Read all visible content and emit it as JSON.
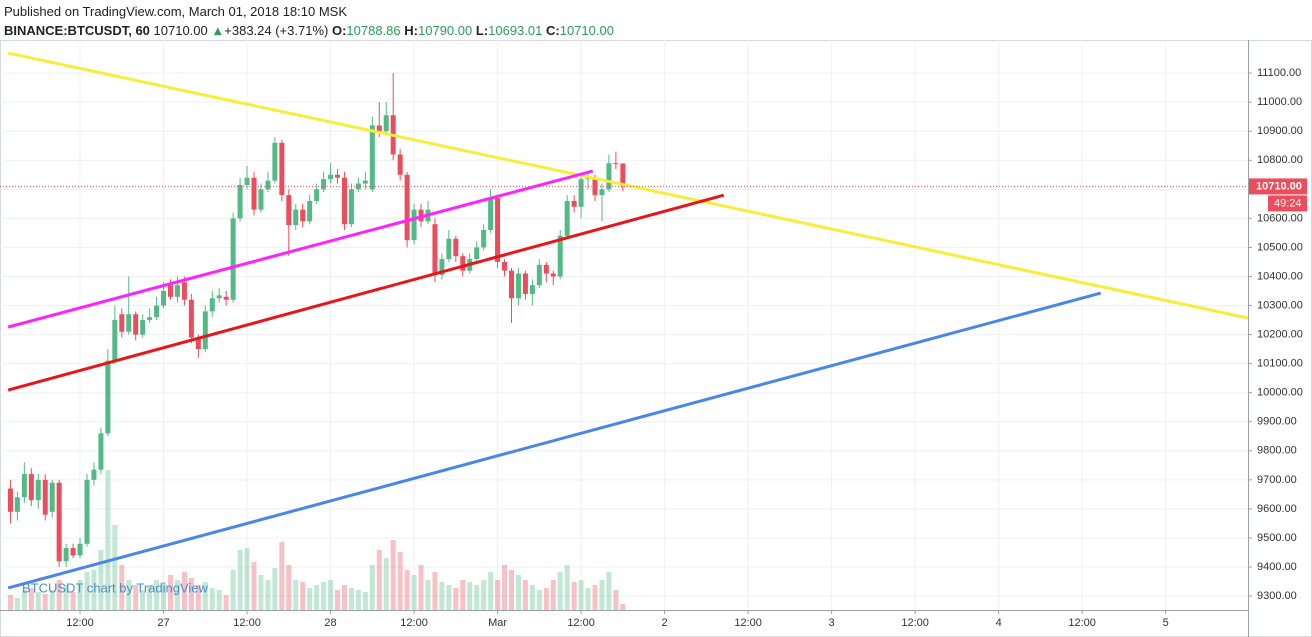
{
  "chart_data": {
    "type": "candlestick",
    "header": {
      "published": "Published on TradingView.com, March 01, 2018 18:10 MSK",
      "symbol": "BINANCE:BTCUSDT, 60",
      "last": "10710.00",
      "arrow": "▲",
      "change": "+383.24 (+3.71%)",
      "o_label": "O:",
      "o": "10788.86",
      "h_label": "H:",
      "h": "10790.00",
      "l_label": "L:",
      "l": "10693.01",
      "c_label": "C:",
      "c": "10710.00"
    },
    "watermark": "BTCUSDT chart by TradingView",
    "up_color": "#53b987",
    "down_color": "#eb4d5c",
    "x": [
      "2018-02-26 02:00",
      "2018-02-26 03:00",
      "2018-02-26 04:00",
      "2018-02-26 05:00",
      "2018-02-26 06:00",
      "2018-02-26 07:00",
      "2018-02-26 08:00",
      "2018-02-26 09:00",
      "2018-02-26 10:00",
      "2018-02-26 11:00",
      "2018-02-26 12:00",
      "2018-02-26 13:00",
      "2018-02-26 14:00",
      "2018-02-26 15:00",
      "2018-02-26 16:00",
      "2018-02-26 17:00",
      "2018-02-26 18:00",
      "2018-02-26 19:00",
      "2018-02-26 20:00",
      "2018-02-26 21:00",
      "2018-02-26 22:00",
      "2018-02-26 23:00",
      "2018-02-27 00:00",
      "2018-02-27 01:00",
      "2018-02-27 02:00",
      "2018-02-27 03:00",
      "2018-02-27 04:00",
      "2018-02-27 05:00",
      "2018-02-27 06:00",
      "2018-02-27 07:00",
      "2018-02-27 08:00",
      "2018-02-27 09:00",
      "2018-02-27 10:00",
      "2018-02-27 11:00",
      "2018-02-27 12:00",
      "2018-02-27 13:00",
      "2018-02-27 14:00",
      "2018-02-27 15:00",
      "2018-02-27 16:00",
      "2018-02-27 17:00",
      "2018-02-27 18:00",
      "2018-02-27 19:00",
      "2018-02-27 20:00",
      "2018-02-27 21:00",
      "2018-02-27 22:00",
      "2018-02-27 23:00",
      "2018-02-28 00:00",
      "2018-02-28 01:00",
      "2018-02-28 02:00",
      "2018-02-28 03:00",
      "2018-02-28 04:00",
      "2018-02-28 05:00",
      "2018-02-28 06:00",
      "2018-02-28 07:00",
      "2018-02-28 08:00",
      "2018-02-28 09:00",
      "2018-02-28 10:00",
      "2018-02-28 11:00",
      "2018-02-28 12:00",
      "2018-02-28 13:00",
      "2018-02-28 14:00",
      "2018-02-28 15:00",
      "2018-02-28 16:00",
      "2018-02-28 17:00",
      "2018-02-28 18:00",
      "2018-02-28 19:00",
      "2018-02-28 20:00",
      "2018-02-28 21:00",
      "2018-02-28 22:00",
      "2018-02-28 23:00",
      "2018-03-01 00:00",
      "2018-03-01 01:00",
      "2018-03-01 02:00",
      "2018-03-01 03:00",
      "2018-03-01 04:00",
      "2018-03-01 05:00",
      "2018-03-01 06:00",
      "2018-03-01 07:00",
      "2018-03-01 08:00",
      "2018-03-01 09:00",
      "2018-03-01 10:00",
      "2018-03-01 11:00",
      "2018-03-01 12:00",
      "2018-03-01 13:00",
      "2018-03-01 14:00",
      "2018-03-01 15:00",
      "2018-03-01 16:00",
      "2018-03-01 17:00",
      "2018-03-01 18:00"
    ],
    "open": [
      9670,
      9590,
      9640,
      9720,
      9630,
      9700,
      9590,
      9690,
      9420,
      9465,
      9440,
      9480,
      9700,
      9735,
      9860,
      10110,
      10270,
      10210,
      10270,
      10200,
      10250,
      10260,
      10300,
      10370,
      10330,
      10380,
      10320,
      10190,
      10150,
      10280,
      10325,
      10330,
      10320,
      10600,
      10715,
      10740,
      10630,
      10700,
      10730,
      10860,
      10680,
      10577,
      10630,
      10590,
      10660,
      10700,
      10735,
      10750,
      10740,
      10580,
      10700,
      10720,
      10700,
      10920,
      10900,
      10955,
      10820,
      10750,
      10525,
      10630,
      10590,
      10580,
      10405,
      10460,
      10530,
      10470,
      10420,
      10460,
      10500,
      10560,
      10670,
      10450,
      10420,
      10325,
      10410,
      10340,
      10370,
      10440,
      10410,
      10400,
      10540,
      10660,
      10640,
      10735,
      10740,
      10680,
      10700,
      10790,
      10788.86
    ],
    "high": [
      9700,
      9660,
      9760,
      9740,
      9720,
      9720,
      9700,
      9700,
      9480,
      9480,
      9500,
      9720,
      9760,
      9880,
      10150,
      10300,
      10290,
      10400,
      10280,
      10270,
      10290,
      10330,
      10380,
      10390,
      10400,
      10400,
      10340,
      10200,
      10300,
      10350,
      10360,
      10350,
      10620,
      10740,
      10780,
      10760,
      10720,
      10760,
      10880,
      10870,
      10700,
      10650,
      10650,
      10680,
      10720,
      10760,
      10790,
      10770,
      10760,
      10720,
      10740,
      10760,
      10950,
      11000,
      11000,
      11100,
      10840,
      10760,
      10650,
      10650,
      10660,
      10600,
      10480,
      10560,
      10540,
      10480,
      10480,
      10520,
      10580,
      10700,
      10680,
      10460,
      10430,
      10430,
      10420,
      10390,
      10460,
      10450,
      10420,
      10560,
      10680,
      10680,
      10750,
      10760,
      10750,
      10720,
      10820,
      10830,
      10790
    ],
    "low": [
      9550,
      9560,
      9620,
      9610,
      9600,
      9560,
      9570,
      9400,
      9400,
      9430,
      9430,
      9470,
      9680,
      9720,
      9850,
      10100,
      10190,
      10200,
      10180,
      10190,
      10240,
      10250,
      10290,
      10320,
      10310,
      10300,
      10170,
      10120,
      10140,
      10260,
      10310,
      10300,
      10310,
      10590,
      10700,
      10610,
      10620,
      10690,
      10720,
      10660,
      10470,
      10560,
      10570,
      10580,
      10650,
      10690,
      10720,
      10720,
      10560,
      10570,
      10690,
      10700,
      10690,
      10880,
      10890,
      10800,
      10730,
      10500,
      10510,
      10570,
      10580,
      10380,
      10390,
      10450,
      10450,
      10400,
      10410,
      10450,
      10490,
      10550,
      10430,
      10400,
      10240,
      10300,
      10320,
      10300,
      10360,
      10380,
      10370,
      10390,
      10530,
      10620,
      10600,
      10700,
      10660,
      10590,
      10690,
      10770,
      10693.01
    ],
    "close": [
      9590,
      9640,
      9720,
      9630,
      9700,
      9580,
      9690,
      9420,
      9465,
      9440,
      9480,
      9700,
      9735,
      9860,
      10110,
      10250,
      10210,
      10270,
      10200,
      10250,
      10260,
      10300,
      10350,
      10330,
      10370,
      10320,
      10190,
      10150,
      10280,
      10325,
      10335,
      10320,
      10600,
      10715,
      10740,
      10630,
      10700,
      10730,
      10860,
      10680,
      10577,
      10630,
      10590,
      10660,
      10700,
      10735,
      10750,
      10740,
      10580,
      10700,
      10720,
      10730,
      10920,
      10900,
      10955,
      10820,
      10750,
      10525,
      10630,
      10590,
      10630,
      10405,
      10460,
      10530,
      10470,
      10420,
      10460,
      10500,
      10560,
      10670,
      10450,
      10420,
      10325,
      10410,
      10340,
      10370,
      10440,
      10410,
      10400,
      10540,
      10660,
      10640,
      10735,
      10740,
      10680,
      10700,
      10790,
      10789,
      10710
    ],
    "volume": [
      15,
      12,
      20,
      22,
      18,
      16,
      20,
      30,
      25,
      18,
      30,
      38,
      40,
      60,
      140,
      85,
      45,
      30,
      25,
      20,
      25,
      30,
      28,
      35,
      30,
      38,
      32,
      25,
      28,
      22,
      20,
      15,
      40,
      60,
      62,
      48,
      35,
      30,
      42,
      68,
      45,
      30,
      28,
      22,
      25,
      28,
      30,
      20,
      25,
      22,
      20,
      18,
      45,
      60,
      52,
      70,
      58,
      40,
      35,
      45,
      30,
      38,
      28,
      25,
      22,
      30,
      28,
      25,
      30,
      38,
      30,
      45,
      40,
      35,
      30,
      25,
      20,
      22,
      30,
      38,
      45,
      28,
      30,
      22,
      25,
      30,
      38,
      20,
      6
    ],
    "lines": [
      {
        "color": "#f5ef3a",
        "x": [
          "2018-02-26 01:40",
          "2018-03-05 11:50"
        ],
        "values": [
          11169,
          10257
        ]
      },
      {
        "color": "#ff22ff",
        "x": [
          "2018-02-26 01:40",
          "2018-03-01 13:40"
        ],
        "values": [
          10226,
          10763
        ]
      },
      {
        "color": "#e8161a",
        "x": [
          "2018-02-26 01:40",
          "2018-03-02 08:30"
        ],
        "values": [
          10009,
          10680
        ]
      },
      {
        "color": "#4a86e8",
        "x": [
          "2018-02-26 01:40",
          "2018-03-04 14:40"
        ],
        "values": [
          9328,
          10343
        ]
      }
    ],
    "last_price": {
      "value": 10710,
      "label": "10710.00"
    },
    "countdown": "49:24",
    "xlim": [
      "2018-02-26 00:30",
      "2018-03-05 11:50"
    ],
    "xticks": [
      {
        "value": "2018-02-26 12:00",
        "label": "12:00"
      },
      {
        "value": "2018-02-27 00:00",
        "label": "27"
      },
      {
        "value": "2018-02-27 12:00",
        "label": "12:00"
      },
      {
        "value": "2018-02-28 00:00",
        "label": "28"
      },
      {
        "value": "2018-02-28 12:00",
        "label": "12:00"
      },
      {
        "value": "2018-03-01 00:00",
        "label": "Mar"
      },
      {
        "value": "2018-03-01 12:00",
        "label": "12:00"
      },
      {
        "value": "2018-03-02 00:00",
        "label": "2"
      },
      {
        "value": "2018-03-02 12:00",
        "label": "12:00"
      },
      {
        "value": "2018-03-03 00:00",
        "label": "3"
      },
      {
        "value": "2018-03-03 12:00",
        "label": "12:00"
      },
      {
        "value": "2018-03-04 00:00",
        "label": "4"
      },
      {
        "value": "2018-03-04 12:00",
        "label": "12:00"
      },
      {
        "value": "2018-03-05 00:00",
        "label": "5"
      }
    ],
    "ylim": [
      9252,
      11214
    ],
    "yticks": [
      {
        "value": 9300,
        "label": "9300.00"
      },
      {
        "value": 9400,
        "label": "9400.00"
      },
      {
        "value": 9500,
        "label": "9500.00"
      },
      {
        "value": 9600,
        "label": "9600.00"
      },
      {
        "value": 9700,
        "label": "9700.00"
      },
      {
        "value": 9800,
        "label": "9800.00"
      },
      {
        "value": 9900,
        "label": "9900.00"
      },
      {
        "value": 10000,
        "label": "10000.00"
      },
      {
        "value": 10100,
        "label": "10100.00"
      },
      {
        "value": 10200,
        "label": "10200.00"
      },
      {
        "value": 10300,
        "label": "10300.00"
      },
      {
        "value": 10400,
        "label": "10400.00"
      },
      {
        "value": 10500,
        "label": "10500.00"
      },
      {
        "value": 10600,
        "label": "10600.00"
      },
      {
        "value": 10700,
        "label": "10700.00"
      },
      {
        "value": 10800,
        "label": "10800.00"
      },
      {
        "value": 10900,
        "label": "10900.00"
      },
      {
        "value": 11000,
        "label": "11000.00"
      },
      {
        "value": 11100,
        "label": "11100.00"
      }
    ],
    "grid": true
  }
}
